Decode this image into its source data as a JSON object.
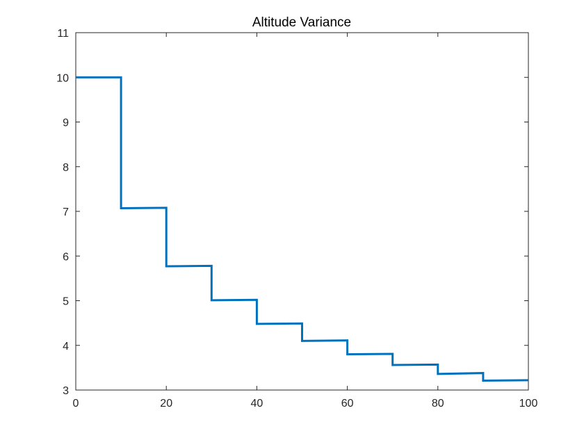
{
  "chart_data": {
    "type": "line",
    "title": "Altitude Variance",
    "xlabel": "",
    "ylabel": "",
    "xlim": [
      0,
      100
    ],
    "ylim": [
      3,
      11
    ],
    "xticks": [
      0,
      20,
      40,
      60,
      80,
      100
    ],
    "yticks": [
      3,
      4,
      5,
      6,
      7,
      8,
      9,
      10,
      11
    ],
    "grid": false,
    "line_color": "#0072BD",
    "series": [
      {
        "x": [
          0,
          10,
          10,
          20,
          20,
          30,
          30,
          40,
          40,
          50,
          50,
          60,
          60,
          70,
          70,
          80,
          80,
          90,
          90,
          100
        ],
        "y": [
          10.0,
          10.0,
          7.07,
          7.08,
          5.77,
          5.78,
          5.01,
          5.02,
          4.48,
          4.49,
          4.1,
          4.11,
          3.8,
          3.81,
          3.56,
          3.57,
          3.36,
          3.38,
          3.21,
          3.22
        ]
      }
    ]
  }
}
